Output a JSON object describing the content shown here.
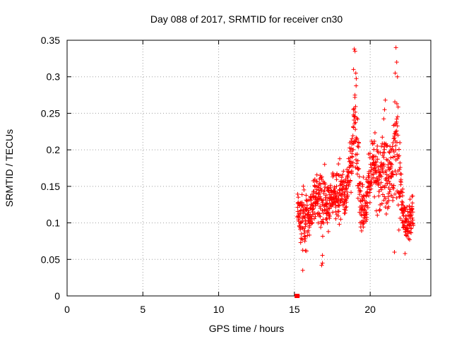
{
  "chart_data": {
    "type": "scatter",
    "title": "Day 088 of 2017, SRMTID for receiver cn30",
    "xlabel": "GPS time / hours",
    "ylabel": "SRMTID / TECUs",
    "xlim": [
      0,
      24
    ],
    "ylim": [
      0,
      0.35
    ],
    "xticks": [
      0,
      5,
      10,
      15,
      20
    ],
    "xtick_labels": [
      "0",
      "5",
      "10",
      "15",
      "20"
    ],
    "yticks": [
      0,
      0.05,
      0.1,
      0.15,
      0.2,
      0.25,
      0.3,
      0.35
    ],
    "ytick_labels": [
      "0",
      "0.05",
      "0.1",
      "0.15",
      "0.2",
      "0.25",
      "0.3",
      "0.35"
    ],
    "grid": true,
    "marker": "+",
    "marker_color": "#ff0000",
    "zero_points": [
      {
        "x": 15.15,
        "y": 0.0
      },
      {
        "x": 15.2,
        "y": 0.0
      }
    ],
    "envelope": [
      {
        "x": 15.2,
        "lo": 0.1,
        "hi": 0.15
      },
      {
        "x": 15.5,
        "lo": 0.035,
        "hi": 0.16
      },
      {
        "x": 15.8,
        "lo": 0.06,
        "hi": 0.145
      },
      {
        "x": 16.2,
        "lo": 0.09,
        "hi": 0.16
      },
      {
        "x": 16.5,
        "lo": 0.1,
        "hi": 0.19
      },
      {
        "x": 16.8,
        "lo": 0.045,
        "hi": 0.195
      },
      {
        "x": 17.2,
        "lo": 0.08,
        "hi": 0.17
      },
      {
        "x": 17.6,
        "lo": 0.1,
        "hi": 0.185
      },
      {
        "x": 18.0,
        "lo": 0.09,
        "hi": 0.2
      },
      {
        "x": 18.4,
        "lo": 0.1,
        "hi": 0.18
      },
      {
        "x": 18.8,
        "lo": 0.13,
        "hi": 0.25
      },
      {
        "x": 19.0,
        "lo": 0.14,
        "hi": 0.338
      },
      {
        "x": 19.3,
        "lo": 0.065,
        "hi": 0.2
      },
      {
        "x": 19.6,
        "lo": 0.06,
        "hi": 0.17
      },
      {
        "x": 19.9,
        "lo": 0.1,
        "hi": 0.2
      },
      {
        "x": 20.2,
        "lo": 0.12,
        "hi": 0.245
      },
      {
        "x": 20.6,
        "lo": 0.09,
        "hi": 0.22
      },
      {
        "x": 21.0,
        "lo": 0.08,
        "hi": 0.27
      },
      {
        "x": 21.4,
        "lo": 0.09,
        "hi": 0.22
      },
      {
        "x": 21.7,
        "lo": 0.055,
        "hi": 0.34
      },
      {
        "x": 22.0,
        "lo": 0.09,
        "hi": 0.22
      },
      {
        "x": 22.3,
        "lo": 0.055,
        "hi": 0.13
      },
      {
        "x": 22.6,
        "lo": 0.065,
        "hi": 0.15
      },
      {
        "x": 22.85,
        "lo": 0.075,
        "hi": 0.145
      }
    ],
    "peaks": [
      {
        "x": 18.95,
        "y": 0.338
      },
      {
        "x": 19.0,
        "y": 0.335
      },
      {
        "x": 18.9,
        "y": 0.31
      },
      {
        "x": 19.05,
        "y": 0.305
      },
      {
        "x": 21.7,
        "y": 0.34
      },
      {
        "x": 21.75,
        "y": 0.32
      },
      {
        "x": 21.65,
        "y": 0.305
      },
      {
        "x": 21.8,
        "y": 0.3
      },
      {
        "x": 21.0,
        "y": 0.268
      },
      {
        "x": 20.95,
        "y": 0.255
      },
      {
        "x": 15.55,
        "y": 0.035
      },
      {
        "x": 16.85,
        "y": 0.045
      },
      {
        "x": 16.8,
        "y": 0.042
      },
      {
        "x": 21.6,
        "y": 0.06
      },
      {
        "x": 22.3,
        "y": 0.058
      }
    ]
  }
}
